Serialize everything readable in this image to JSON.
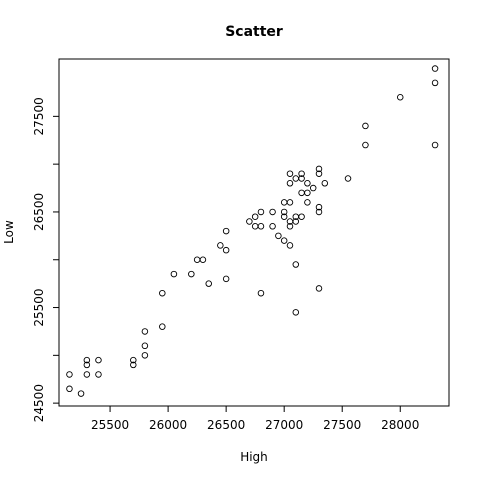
{
  "chart_data": {
    "type": "scatter",
    "title": "Scatter",
    "xlabel": "High",
    "ylabel": "Low",
    "xlim": [
      25060,
      28420
    ],
    "ylim": [
      24470,
      28100
    ],
    "xticks": [
      25500,
      26000,
      26500,
      27000,
      27500,
      28000
    ],
    "yticks": [
      24500,
      25500,
      26500,
      27500
    ],
    "yticks_minor": [
      25000,
      26000,
      27000
    ],
    "grid": false,
    "legend": "none",
    "marker": "open-circle",
    "points": [
      [
        25150,
        24800
      ],
      [
        25150,
        24650
      ],
      [
        25250,
        24600
      ],
      [
        25300,
        24950
      ],
      [
        25300,
        24900
      ],
      [
        25300,
        24800
      ],
      [
        25400,
        24950
      ],
      [
        25400,
        24800
      ],
      [
        25700,
        24950
      ],
      [
        25700,
        24900
      ],
      [
        25800,
        25250
      ],
      [
        25800,
        25100
      ],
      [
        25800,
        25000
      ],
      [
        25950,
        25650
      ],
      [
        25950,
        25300
      ],
      [
        26050,
        25850
      ],
      [
        26200,
        25850
      ],
      [
        26250,
        26000
      ],
      [
        26300,
        26000
      ],
      [
        26350,
        25750
      ],
      [
        26450,
        26150
      ],
      [
        26500,
        26300
      ],
      [
        26500,
        26100
      ],
      [
        26500,
        25800
      ],
      [
        26700,
        26400
      ],
      [
        26750,
        26450
      ],
      [
        26750,
        26350
      ],
      [
        26800,
        26500
      ],
      [
        26800,
        26350
      ],
      [
        26800,
        25650
      ],
      [
        26900,
        26500
      ],
      [
        26900,
        26350
      ],
      [
        26950,
        26250
      ],
      [
        27000,
        26600
      ],
      [
        27000,
        26500
      ],
      [
        27000,
        26450
      ],
      [
        27000,
        26200
      ],
      [
        27050,
        26900
      ],
      [
        27050,
        26800
      ],
      [
        27050,
        26600
      ],
      [
        27050,
        26400
      ],
      [
        27050,
        26350
      ],
      [
        27050,
        26150
      ],
      [
        27100,
        26850
      ],
      [
        27100,
        26450
      ],
      [
        27100,
        26400
      ],
      [
        27100,
        25950
      ],
      [
        27100,
        25450
      ],
      [
        27150,
        26900
      ],
      [
        27150,
        26850
      ],
      [
        27150,
        26700
      ],
      [
        27150,
        26450
      ],
      [
        27200,
        26800
      ],
      [
        27200,
        26700
      ],
      [
        27200,
        26600
      ],
      [
        27250,
        26750
      ],
      [
        27300,
        26950
      ],
      [
        27300,
        26900
      ],
      [
        27300,
        26550
      ],
      [
        27300,
        26500
      ],
      [
        27300,
        25700
      ],
      [
        27350,
        26800
      ],
      [
        27550,
        26850
      ],
      [
        27700,
        27400
      ],
      [
        27700,
        27200
      ],
      [
        28000,
        27700
      ],
      [
        28300,
        28000
      ],
      [
        28300,
        27850
      ],
      [
        28300,
        27200
      ]
    ]
  }
}
